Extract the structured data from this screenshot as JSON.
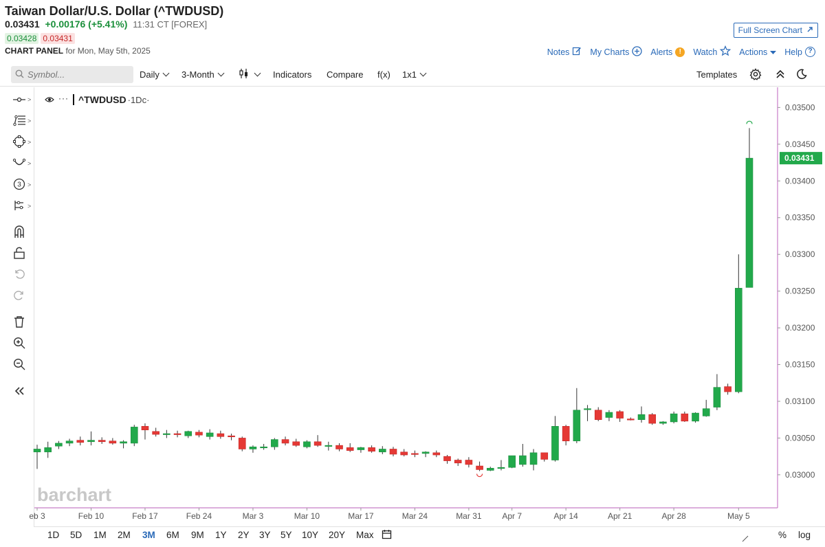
{
  "header": {
    "title": "Taiwan Dollar/U.S. Dollar (^TWDUSD)",
    "last": "0.03431",
    "change": "+0.00176 (+5.41%)",
    "time": "11:31 CT [FOREX]",
    "bid": "0.03428",
    "ask": "0.03431",
    "panel_label": "CHART PANEL",
    "panel_date": "for Mon, May 5th, 2025",
    "fullscreen_label": "Full Screen Chart",
    "links": {
      "notes": "Notes",
      "my_charts": "My Charts",
      "alerts": "Alerts",
      "watch": "Watch",
      "actions": "Actions",
      "help": "Help"
    }
  },
  "toolbar": {
    "symbol_placeholder": "Symbol...",
    "interval": "Daily",
    "range": "3-Month",
    "indicators": "Indicators",
    "compare": "Compare",
    "fx": "f(x)",
    "layout": "1x1",
    "templates": "Templates"
  },
  "legend": {
    "symbol": "^TWDUSD",
    "period": "·1Dc·"
  },
  "watermark": "barchart",
  "price_label": "0.03431",
  "bottom": {
    "ranges": [
      "1D",
      "5D",
      "1M",
      "2M",
      "3M",
      "6M",
      "9M",
      "1Y",
      "2Y",
      "3Y",
      "5Y",
      "10Y",
      "20Y",
      "Max"
    ],
    "active_range": "3M",
    "percent": "%",
    "log": "log"
  },
  "colors": {
    "up": "#22a94b",
    "down": "#e53935",
    "accent": "#2a6ab8",
    "axis_line": "#c77dc7"
  },
  "chart_data": {
    "type": "candlestick",
    "ylim": [
      0.02955,
      0.0352
    ],
    "y_ticks": [
      "0.03500",
      "0.03450",
      "0.03400",
      "0.03350",
      "0.03300",
      "0.03250",
      "0.03200",
      "0.03150",
      "0.03100",
      "0.03050",
      "0.03000"
    ],
    "x_ticks": [
      "eb 3",
      "Feb 10",
      "Feb 17",
      "Feb 24",
      "Mar 3",
      "Mar 10",
      "Mar 17",
      "Mar 24",
      "Mar 31",
      "Apr 7",
      "Apr 14",
      "Apr 21",
      "Apr 28",
      "May 5"
    ],
    "candles": [
      {
        "date": "Feb 3",
        "o": 0.03031,
        "h": 0.03041,
        "l": 0.03008,
        "c": 0.03035
      },
      {
        "date": "Feb 4",
        "o": 0.03031,
        "h": 0.03045,
        "l": 0.03023,
        "c": 0.03037
      },
      {
        "date": "Feb 5",
        "o": 0.03039,
        "h": 0.03046,
        "l": 0.03035,
        "c": 0.03043
      },
      {
        "date": "Feb 6",
        "o": 0.03043,
        "h": 0.03049,
        "l": 0.03039,
        "c": 0.03046
      },
      {
        "date": "Feb 7",
        "o": 0.03047,
        "h": 0.03052,
        "l": 0.0304,
        "c": 0.03044
      },
      {
        "date": "Feb 10",
        "o": 0.03045,
        "h": 0.03059,
        "l": 0.0304,
        "c": 0.03047
      },
      {
        "date": "Feb 11",
        "o": 0.03047,
        "h": 0.03051,
        "l": 0.03042,
        "c": 0.03045
      },
      {
        "date": "Feb 12",
        "o": 0.03046,
        "h": 0.0305,
        "l": 0.03041,
        "c": 0.03043
      },
      {
        "date": "Feb 13",
        "o": 0.03043,
        "h": 0.03047,
        "l": 0.03036,
        "c": 0.03045
      },
      {
        "date": "Feb 14",
        "o": 0.03043,
        "h": 0.03068,
        "l": 0.03039,
        "c": 0.03065
      },
      {
        "date": "Feb 17",
        "o": 0.03066,
        "h": 0.0307,
        "l": 0.03048,
        "c": 0.03061
      },
      {
        "date": "Feb 18",
        "o": 0.03059,
        "h": 0.03064,
        "l": 0.03052,
        "c": 0.03055
      },
      {
        "date": "Feb 19",
        "o": 0.03056,
        "h": 0.03061,
        "l": 0.0305,
        "c": 0.03056
      },
      {
        "date": "Feb 20",
        "o": 0.03056,
        "h": 0.0306,
        "l": 0.03051,
        "c": 0.03055
      },
      {
        "date": "Feb 21",
        "o": 0.03053,
        "h": 0.0306,
        "l": 0.0305,
        "c": 0.03059
      },
      {
        "date": "Feb 24",
        "o": 0.03058,
        "h": 0.03061,
        "l": 0.03051,
        "c": 0.03054
      },
      {
        "date": "Feb 25",
        "o": 0.03052,
        "h": 0.03062,
        "l": 0.03048,
        "c": 0.03057
      },
      {
        "date": "Feb 26",
        "o": 0.03056,
        "h": 0.0306,
        "l": 0.03049,
        "c": 0.03052
      },
      {
        "date": "Feb 27",
        "o": 0.03053,
        "h": 0.03056,
        "l": 0.03047,
        "c": 0.03052
      },
      {
        "date": "Feb 28",
        "o": 0.0305,
        "h": 0.03052,
        "l": 0.03032,
        "c": 0.03035
      },
      {
        "date": "Mar 3",
        "o": 0.03035,
        "h": 0.0304,
        "l": 0.0303,
        "c": 0.03038
      },
      {
        "date": "Mar 4",
        "o": 0.03037,
        "h": 0.03042,
        "l": 0.03034,
        "c": 0.03038
      },
      {
        "date": "Mar 5",
        "o": 0.03038,
        "h": 0.0305,
        "l": 0.03034,
        "c": 0.03048
      },
      {
        "date": "Mar 6",
        "o": 0.03048,
        "h": 0.03052,
        "l": 0.0304,
        "c": 0.03043
      },
      {
        "date": "Mar 7",
        "o": 0.03045,
        "h": 0.03049,
        "l": 0.03038,
        "c": 0.0304
      },
      {
        "date": "Mar 10",
        "o": 0.03038,
        "h": 0.03047,
        "l": 0.03036,
        "c": 0.03045
      },
      {
        "date": "Mar 11",
        "o": 0.03045,
        "h": 0.03054,
        "l": 0.03038,
        "c": 0.0304
      },
      {
        "date": "Mar 12",
        "o": 0.0304,
        "h": 0.03045,
        "l": 0.03033,
        "c": 0.0304
      },
      {
        "date": "Mar 13",
        "o": 0.0304,
        "h": 0.03043,
        "l": 0.03032,
        "c": 0.03035
      },
      {
        "date": "Mar 14",
        "o": 0.03037,
        "h": 0.03043,
        "l": 0.03031,
        "c": 0.03033
      },
      {
        "date": "Mar 17",
        "o": 0.03034,
        "h": 0.03038,
        "l": 0.0303,
        "c": 0.03037
      },
      {
        "date": "Mar 18",
        "o": 0.03037,
        "h": 0.0304,
        "l": 0.0303,
        "c": 0.03032
      },
      {
        "date": "Mar 19",
        "o": 0.03031,
        "h": 0.03039,
        "l": 0.03028,
        "c": 0.03035
      },
      {
        "date": "Mar 20",
        "o": 0.03035,
        "h": 0.03038,
        "l": 0.03025,
        "c": 0.03028
      },
      {
        "date": "Mar 21",
        "o": 0.03031,
        "h": 0.03035,
        "l": 0.03025,
        "c": 0.03027
      },
      {
        "date": "Mar 24",
        "o": 0.03029,
        "h": 0.03033,
        "l": 0.03024,
        "c": 0.03028
      },
      {
        "date": "Mar 25",
        "o": 0.03029,
        "h": 0.03032,
        "l": 0.03024,
        "c": 0.03031
      },
      {
        "date": "Mar 26",
        "o": 0.0303,
        "h": 0.03033,
        "l": 0.03024,
        "c": 0.03027
      },
      {
        "date": "Mar 27",
        "o": 0.03025,
        "h": 0.03027,
        "l": 0.03015,
        "c": 0.03019
      },
      {
        "date": "Mar 28",
        "o": 0.0302,
        "h": 0.03022,
        "l": 0.03012,
        "c": 0.03016
      },
      {
        "date": "Mar 31",
        "o": 0.0302,
        "h": 0.03024,
        "l": 0.0301,
        "c": 0.03014
      },
      {
        "date": "Apr 1",
        "o": 0.03012,
        "h": 0.03018,
        "l": 0.03005,
        "c": 0.03007
      },
      {
        "date": "Apr 2",
        "o": 0.03006,
        "h": 0.03011,
        "l": 0.03005,
        "c": 0.03009
      },
      {
        "date": "Apr 3",
        "o": 0.03009,
        "h": 0.0302,
        "l": 0.03006,
        "c": 0.0301
      },
      {
        "date": "Apr 7",
        "o": 0.0301,
        "h": 0.03026,
        "l": 0.03009,
        "c": 0.03026
      },
      {
        "date": "Apr 8",
        "o": 0.03014,
        "h": 0.03042,
        "l": 0.03011,
        "c": 0.03026
      },
      {
        "date": "Apr 9",
        "o": 0.03014,
        "h": 0.03035,
        "l": 0.03006,
        "c": 0.0303
      },
      {
        "date": "Apr 10",
        "o": 0.0303,
        "h": 0.0303,
        "l": 0.03018,
        "c": 0.03021
      },
      {
        "date": "Apr 11",
        "o": 0.0302,
        "h": 0.0308,
        "l": 0.03018,
        "c": 0.03066
      },
      {
        "date": "Apr 14",
        "o": 0.03066,
        "h": 0.03068,
        "l": 0.0304,
        "c": 0.03046
      },
      {
        "date": "Apr 15",
        "o": 0.03046,
        "h": 0.03118,
        "l": 0.03043,
        "c": 0.03088
      },
      {
        "date": "Apr 16",
        "o": 0.0309,
        "h": 0.03095,
        "l": 0.03073,
        "c": 0.0309
      },
      {
        "date": "Apr 17",
        "o": 0.03088,
        "h": 0.03092,
        "l": 0.03073,
        "c": 0.03075
      },
      {
        "date": "Apr 18",
        "o": 0.03078,
        "h": 0.03088,
        "l": 0.03073,
        "c": 0.03085
      },
      {
        "date": "Apr 21",
        "o": 0.03086,
        "h": 0.03088,
        "l": 0.03072,
        "c": 0.03077
      },
      {
        "date": "Apr 22",
        "o": 0.03076,
        "h": 0.03078,
        "l": 0.03074,
        "c": 0.03075
      },
      {
        "date": "Apr 23",
        "o": 0.03075,
        "h": 0.03093,
        "l": 0.03071,
        "c": 0.03082
      },
      {
        "date": "Apr 24",
        "o": 0.03082,
        "h": 0.03084,
        "l": 0.03068,
        "c": 0.0307
      },
      {
        "date": "Apr 25",
        "o": 0.0307,
        "h": 0.03073,
        "l": 0.03068,
        "c": 0.03072
      },
      {
        "date": "Apr 28",
        "o": 0.03072,
        "h": 0.03086,
        "l": 0.0307,
        "c": 0.03083
      },
      {
        "date": "Apr 29",
        "o": 0.03083,
        "h": 0.03086,
        "l": 0.03072,
        "c": 0.03073
      },
      {
        "date": "Apr 30",
        "o": 0.03073,
        "h": 0.03085,
        "l": 0.03071,
        "c": 0.03084
      },
      {
        "date": "May 1",
        "o": 0.0308,
        "h": 0.03102,
        "l": 0.03079,
        "c": 0.0309
      },
      {
        "date": "May 2",
        "o": 0.03092,
        "h": 0.03137,
        "l": 0.03088,
        "c": 0.03119
      },
      {
        "date": "May 2b",
        "o": 0.0312,
        "h": 0.03124,
        "l": 0.03109,
        "c": 0.03113
      },
      {
        "date": "May 4",
        "o": 0.03113,
        "h": 0.033,
        "l": 0.03111,
        "c": 0.03254
      },
      {
        "date": "May 5",
        "o": 0.03255,
        "h": 0.03472,
        "l": 0.03255,
        "c": 0.03431
      }
    ]
  }
}
